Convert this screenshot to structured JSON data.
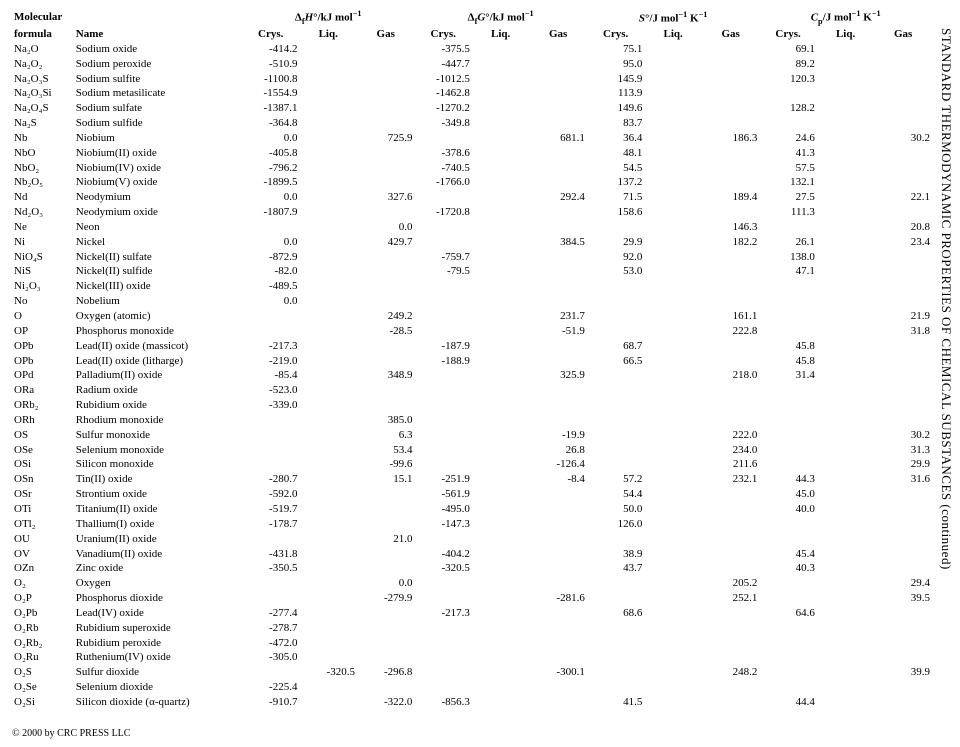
{
  "header": {
    "row1": {
      "molecular": "Molecular",
      "dfH": "Δ_fH°/kJ mol⁻¹",
      "dfG": "Δ_fG°/kJ mol⁻¹",
      "S": "S°/J mol⁻¹ K⁻¹",
      "Cp": "C_p/J mol⁻¹ K⁻¹"
    },
    "row2": {
      "formula": "formula",
      "name": "Name",
      "crys": "Crys.",
      "liq": "Liq.",
      "gas": "Gas"
    }
  },
  "sidebar": "STANDARD THERMODYNAMIC PROPERTIES OF CHEMICAL SUBSTANCES (continued)",
  "footer": "© 2000 by CRC PRESS LLC",
  "rows": [
    {
      "formula": "Na₂O",
      "name": "Sodium oxide",
      "hc": "-414.2",
      "hl": "",
      "hg": "",
      "gc": "-375.5",
      "gl": "",
      "gg": "",
      "sc": "75.1",
      "sl": "",
      "sg": "",
      "cc": "69.1",
      "cl": "",
      "cg": ""
    },
    {
      "formula": "Na₂O₂",
      "name": "Sodium peroxide",
      "hc": "-510.9",
      "hl": "",
      "hg": "",
      "gc": "-447.7",
      "gl": "",
      "gg": "",
      "sc": "95.0",
      "sl": "",
      "sg": "",
      "cc": "89.2",
      "cl": "",
      "cg": ""
    },
    {
      "formula": "Na₂O₃S",
      "name": "Sodium sulfite",
      "hc": "-1100.8",
      "hl": "",
      "hg": "",
      "gc": "-1012.5",
      "gl": "",
      "gg": "",
      "sc": "145.9",
      "sl": "",
      "sg": "",
      "cc": "120.3",
      "cl": "",
      "cg": ""
    },
    {
      "formula": "Na₂O₃Si",
      "name": "Sodium metasilicate",
      "hc": "-1554.9",
      "hl": "",
      "hg": "",
      "gc": "-1462.8",
      "gl": "",
      "gg": "",
      "sc": "113.9",
      "sl": "",
      "sg": "",
      "cc": "",
      "cl": "",
      "cg": ""
    },
    {
      "formula": "Na₂O₄S",
      "name": "Sodium sulfate",
      "hc": "-1387.1",
      "hl": "",
      "hg": "",
      "gc": "-1270.2",
      "gl": "",
      "gg": "",
      "sc": "149.6",
      "sl": "",
      "sg": "",
      "cc": "128.2",
      "cl": "",
      "cg": ""
    },
    {
      "formula": "Na₂S",
      "name": "Sodium sulfide",
      "hc": "-364.8",
      "hl": "",
      "hg": "",
      "gc": "-349.8",
      "gl": "",
      "gg": "",
      "sc": "83.7",
      "sl": "",
      "sg": "",
      "cc": "",
      "cl": "",
      "cg": ""
    },
    {
      "formula": "Nb",
      "name": "Niobium",
      "hc": "0.0",
      "hl": "",
      "hg": "725.9",
      "gc": "",
      "gl": "",
      "gg": "681.1",
      "sc": "36.4",
      "sl": "",
      "sg": "186.3",
      "cc": "24.6",
      "cl": "",
      "cg": "30.2"
    },
    {
      "formula": "NbO",
      "name": "Niobium(II) oxide",
      "hc": "-405.8",
      "hl": "",
      "hg": "",
      "gc": "-378.6",
      "gl": "",
      "gg": "",
      "sc": "48.1",
      "sl": "",
      "sg": "",
      "cc": "41.3",
      "cl": "",
      "cg": ""
    },
    {
      "formula": "NbO₂",
      "name": "Niobium(IV) oxide",
      "hc": "-796.2",
      "hl": "",
      "hg": "",
      "gc": "-740.5",
      "gl": "",
      "gg": "",
      "sc": "54.5",
      "sl": "",
      "sg": "",
      "cc": "57.5",
      "cl": "",
      "cg": ""
    },
    {
      "formula": "Nb₂O₅",
      "name": "Niobium(V) oxide",
      "hc": "-1899.5",
      "hl": "",
      "hg": "",
      "gc": "-1766.0",
      "gl": "",
      "gg": "",
      "sc": "137.2",
      "sl": "",
      "sg": "",
      "cc": "132.1",
      "cl": "",
      "cg": ""
    },
    {
      "formula": "Nd",
      "name": "Neodymium",
      "hc": "0.0",
      "hl": "",
      "hg": "327.6",
      "gc": "",
      "gl": "",
      "gg": "292.4",
      "sc": "71.5",
      "sl": "",
      "sg": "189.4",
      "cc": "27.5",
      "cl": "",
      "cg": "22.1"
    },
    {
      "formula": "Nd₂O₃",
      "name": "Neodymium oxide",
      "hc": "-1807.9",
      "hl": "",
      "hg": "",
      "gc": "-1720.8",
      "gl": "",
      "gg": "",
      "sc": "158.6",
      "sl": "",
      "sg": "",
      "cc": "111.3",
      "cl": "",
      "cg": ""
    },
    {
      "formula": "Ne",
      "name": "Neon",
      "hc": "",
      "hl": "",
      "hg": "0.0",
      "gc": "",
      "gl": "",
      "gg": "",
      "sc": "",
      "sl": "",
      "sg": "146.3",
      "cc": "",
      "cl": "",
      "cg": "20.8"
    },
    {
      "formula": "Ni",
      "name": "Nickel",
      "hc": "0.0",
      "hl": "",
      "hg": "429.7",
      "gc": "",
      "gl": "",
      "gg": "384.5",
      "sc": "29.9",
      "sl": "",
      "sg": "182.2",
      "cc": "26.1",
      "cl": "",
      "cg": "23.4"
    },
    {
      "formula": "NiO₄S",
      "name": "Nickel(II) sulfate",
      "hc": "-872.9",
      "hl": "",
      "hg": "",
      "gc": "-759.7",
      "gl": "",
      "gg": "",
      "sc": "92.0",
      "sl": "",
      "sg": "",
      "cc": "138.0",
      "cl": "",
      "cg": ""
    },
    {
      "formula": "NiS",
      "name": "Nickel(II) sulfide",
      "hc": "-82.0",
      "hl": "",
      "hg": "",
      "gc": "-79.5",
      "gl": "",
      "gg": "",
      "sc": "53.0",
      "sl": "",
      "sg": "",
      "cc": "47.1",
      "cl": "",
      "cg": ""
    },
    {
      "formula": "Ni₂O₃",
      "name": "Nickel(III) oxide",
      "hc": "-489.5",
      "hl": "",
      "hg": "",
      "gc": "",
      "gl": "",
      "gg": "",
      "sc": "",
      "sl": "",
      "sg": "",
      "cc": "",
      "cl": "",
      "cg": ""
    },
    {
      "formula": "No",
      "name": "Nobelium",
      "hc": "0.0",
      "hl": "",
      "hg": "",
      "gc": "",
      "gl": "",
      "gg": "",
      "sc": "",
      "sl": "",
      "sg": "",
      "cc": "",
      "cl": "",
      "cg": ""
    },
    {
      "formula": "O",
      "name": "Oxygen (atomic)",
      "hc": "",
      "hl": "",
      "hg": "249.2",
      "gc": "",
      "gl": "",
      "gg": "231.7",
      "sc": "",
      "sl": "",
      "sg": "161.1",
      "cc": "",
      "cl": "",
      "cg": "21.9"
    },
    {
      "formula": "OP",
      "name": "Phosphorus monoxide",
      "hc": "",
      "hl": "",
      "hg": "-28.5",
      "gc": "",
      "gl": "",
      "gg": "-51.9",
      "sc": "",
      "sl": "",
      "sg": "222.8",
      "cc": "",
      "cl": "",
      "cg": "31.8"
    },
    {
      "formula": "OPb",
      "name": "Lead(II) oxide (massicot)",
      "hc": "-217.3",
      "hl": "",
      "hg": "",
      "gc": "-187.9",
      "gl": "",
      "gg": "",
      "sc": "68.7",
      "sl": "",
      "sg": "",
      "cc": "45.8",
      "cl": "",
      "cg": ""
    },
    {
      "formula": "OPb",
      "name": "Lead(II) oxide (litharge)",
      "hc": "-219.0",
      "hl": "",
      "hg": "",
      "gc": "-188.9",
      "gl": "",
      "gg": "",
      "sc": "66.5",
      "sl": "",
      "sg": "",
      "cc": "45.8",
      "cl": "",
      "cg": ""
    },
    {
      "formula": "OPd",
      "name": "Palladium(II) oxide",
      "hc": "-85.4",
      "hl": "",
      "hg": "348.9",
      "gc": "",
      "gl": "",
      "gg": "325.9",
      "sc": "",
      "sl": "",
      "sg": "218.0",
      "cc": "31.4",
      "cl": "",
      "cg": ""
    },
    {
      "formula": "ORa",
      "name": "Radium oxide",
      "hc": "-523.0",
      "hl": "",
      "hg": "",
      "gc": "",
      "gl": "",
      "gg": "",
      "sc": "",
      "sl": "",
      "sg": "",
      "cc": "",
      "cl": "",
      "cg": ""
    },
    {
      "formula": "ORb₂",
      "name": "Rubidium oxide",
      "hc": "-339.0",
      "hl": "",
      "hg": "",
      "gc": "",
      "gl": "",
      "gg": "",
      "sc": "",
      "sl": "",
      "sg": "",
      "cc": "",
      "cl": "",
      "cg": ""
    },
    {
      "formula": "ORh",
      "name": "Rhodium monoxide",
      "hc": "",
      "hl": "",
      "hg": "385.0",
      "gc": "",
      "gl": "",
      "gg": "",
      "sc": "",
      "sl": "",
      "sg": "",
      "cc": "",
      "cl": "",
      "cg": ""
    },
    {
      "formula": "OS",
      "name": "Sulfur monoxide",
      "hc": "",
      "hl": "",
      "hg": "6.3",
      "gc": "",
      "gl": "",
      "gg": "-19.9",
      "sc": "",
      "sl": "",
      "sg": "222.0",
      "cc": "",
      "cl": "",
      "cg": "30.2"
    },
    {
      "formula": "OSe",
      "name": "Selenium monoxide",
      "hc": "",
      "hl": "",
      "hg": "53.4",
      "gc": "",
      "gl": "",
      "gg": "26.8",
      "sc": "",
      "sl": "",
      "sg": "234.0",
      "cc": "",
      "cl": "",
      "cg": "31.3"
    },
    {
      "formula": "OSi",
      "name": "Silicon monoxide",
      "hc": "",
      "hl": "",
      "hg": "-99.6",
      "gc": "",
      "gl": "",
      "gg": "-126.4",
      "sc": "",
      "sl": "",
      "sg": "211.6",
      "cc": "",
      "cl": "",
      "cg": "29.9"
    },
    {
      "formula": "OSn",
      "name": "Tin(II) oxide",
      "hc": "-280.7",
      "hl": "",
      "hg": "15.1",
      "gc": "-251.9",
      "gl": "",
      "gg": "-8.4",
      "sc": "57.2",
      "sl": "",
      "sg": "232.1",
      "cc": "44.3",
      "cl": "",
      "cg": "31.6"
    },
    {
      "formula": "OSr",
      "name": "Strontium oxide",
      "hc": "-592.0",
      "hl": "",
      "hg": "",
      "gc": "-561.9",
      "gl": "",
      "gg": "",
      "sc": "54.4",
      "sl": "",
      "sg": "",
      "cc": "45.0",
      "cl": "",
      "cg": ""
    },
    {
      "formula": "OTi",
      "name": "Titanium(II) oxide",
      "hc": "-519.7",
      "hl": "",
      "hg": "",
      "gc": "-495.0",
      "gl": "",
      "gg": "",
      "sc": "50.0",
      "sl": "",
      "sg": "",
      "cc": "40.0",
      "cl": "",
      "cg": ""
    },
    {
      "formula": "OTl₂",
      "name": "Thallium(I) oxide",
      "hc": "-178.7",
      "hl": "",
      "hg": "",
      "gc": "-147.3",
      "gl": "",
      "gg": "",
      "sc": "126.0",
      "sl": "",
      "sg": "",
      "cc": "",
      "cl": "",
      "cg": ""
    },
    {
      "formula": "OU",
      "name": "Uranium(II) oxide",
      "hc": "",
      "hl": "",
      "hg": "21.0",
      "gc": "",
      "gl": "",
      "gg": "",
      "sc": "",
      "sl": "",
      "sg": "",
      "cc": "",
      "cl": "",
      "cg": ""
    },
    {
      "formula": "OV",
      "name": "Vanadium(II) oxide",
      "hc": "-431.8",
      "hl": "",
      "hg": "",
      "gc": "-404.2",
      "gl": "",
      "gg": "",
      "sc": "38.9",
      "sl": "",
      "sg": "",
      "cc": "45.4",
      "cl": "",
      "cg": ""
    },
    {
      "formula": "OZn",
      "name": "Zinc oxide",
      "hc": "-350.5",
      "hl": "",
      "hg": "",
      "gc": "-320.5",
      "gl": "",
      "gg": "",
      "sc": "43.7",
      "sl": "",
      "sg": "",
      "cc": "40.3",
      "cl": "",
      "cg": ""
    },
    {
      "formula": "O₂",
      "name": "Oxygen",
      "hc": "",
      "hl": "",
      "hg": "0.0",
      "gc": "",
      "gl": "",
      "gg": "",
      "sc": "",
      "sl": "",
      "sg": "205.2",
      "cc": "",
      "cl": "",
      "cg": "29.4"
    },
    {
      "formula": "O₂P",
      "name": "Phosphorus dioxide",
      "hc": "",
      "hl": "",
      "hg": "-279.9",
      "gc": "",
      "gl": "",
      "gg": "-281.6",
      "sc": "",
      "sl": "",
      "sg": "252.1",
      "cc": "",
      "cl": "",
      "cg": "39.5"
    },
    {
      "formula": "O₂Pb",
      "name": "Lead(IV) oxide",
      "hc": "-277.4",
      "hl": "",
      "hg": "",
      "gc": "-217.3",
      "gl": "",
      "gg": "",
      "sc": "68.6",
      "sl": "",
      "sg": "",
      "cc": "64.6",
      "cl": "",
      "cg": ""
    },
    {
      "formula": "O₂Rb",
      "name": "Rubidium superoxide",
      "hc": "-278.7",
      "hl": "",
      "hg": "",
      "gc": "",
      "gl": "",
      "gg": "",
      "sc": "",
      "sl": "",
      "sg": "",
      "cc": "",
      "cl": "",
      "cg": ""
    },
    {
      "formula": "O₂Rb₂",
      "name": "Rubidium peroxide",
      "hc": "-472.0",
      "hl": "",
      "hg": "",
      "gc": "",
      "gl": "",
      "gg": "",
      "sc": "",
      "sl": "",
      "sg": "",
      "cc": "",
      "cl": "",
      "cg": ""
    },
    {
      "formula": "O₂Ru",
      "name": "Ruthenium(IV) oxide",
      "hc": "-305.0",
      "hl": "",
      "hg": "",
      "gc": "",
      "gl": "",
      "gg": "",
      "sc": "",
      "sl": "",
      "sg": "",
      "cc": "",
      "cl": "",
      "cg": ""
    },
    {
      "formula": "O₂S",
      "name": "Sulfur dioxide",
      "hc": "",
      "hl": "-320.5",
      "hg": "-296.8",
      "gc": "",
      "gl": "",
      "gg": "-300.1",
      "sc": "",
      "sl": "",
      "sg": "248.2",
      "cc": "",
      "cl": "",
      "cg": "39.9"
    },
    {
      "formula": "O₂Se",
      "name": "Selenium dioxide",
      "hc": "-225.4",
      "hl": "",
      "hg": "",
      "gc": "",
      "gl": "",
      "gg": "",
      "sc": "",
      "sl": "",
      "sg": "",
      "cc": "",
      "cl": "",
      "cg": ""
    },
    {
      "formula": "O₂Si",
      "name": "Silicon dioxide (α-quartz)",
      "hc": "-910.7",
      "hl": "",
      "hg": "-322.0",
      "gc": "-856.3",
      "gl": "",
      "gg": "",
      "sc": "41.5",
      "sl": "",
      "sg": "",
      "cc": "44.4",
      "cl": "",
      "cg": ""
    }
  ]
}
